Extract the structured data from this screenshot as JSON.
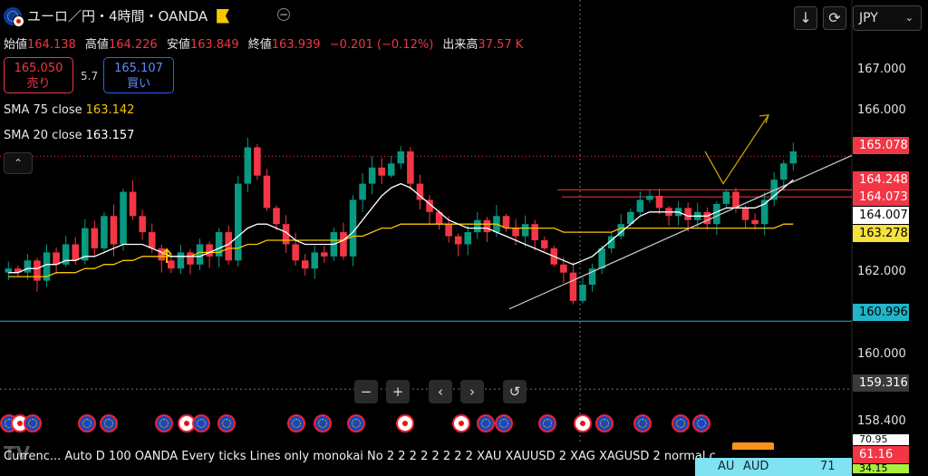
{
  "header": {
    "title": "ユーロ／円・4時間・OANDA",
    "currency_select": "JPY",
    "currency_chevron": "⌄"
  },
  "ohlc": {
    "open_label": "始値",
    "open": "164.138",
    "high_label": "高値",
    "high": "164.226",
    "low_label": "安値",
    "low": "163.849",
    "close_label": "終値",
    "close": "163.939",
    "change": "−0.201 (−0.12%)",
    "volume_label": "出来高",
    "volume": "37.57 K"
  },
  "trade": {
    "sell_price": "165.050",
    "sell_label": "売り",
    "spread": "5.7",
    "buy_price": "165.107",
    "buy_label": "買い"
  },
  "indicators": [
    {
      "label": "SMA 75 close",
      "value": "163.142",
      "color": "#f7c600"
    },
    {
      "label": "SMA 20 close",
      "value": "163.157",
      "color": "#ffffff"
    }
  ],
  "price_axis": {
    "ticks": [
      "167.000",
      "166.000",
      "162.000",
      "160.000",
      "158.400"
    ],
    "labels": [
      {
        "value": "165.078",
        "bg": "#f23645",
        "fg": "#ffffff"
      },
      {
        "value": "164.248",
        "bg": "#f23645",
        "fg": "#ffffff"
      },
      {
        "value": "164.073",
        "bg": "#f23645",
        "fg": "#ffffff"
      },
      {
        "value": "164.007",
        "bg": "#ffffff",
        "fg": "#000000"
      },
      {
        "value": "163.278",
        "bg": "#f7e13c",
        "fg": "#000000"
      },
      {
        "value": "160.996",
        "bg": "#22b4c8",
        "fg": "#000000"
      },
      {
        "value": "159.316",
        "bg": "#3a3a3a",
        "fg": "#ffffff"
      }
    ],
    "partial_labels": [
      {
        "value": "70.95",
        "bg": "#ffffff",
        "fg": "#000000"
      },
      {
        "value": "61.16",
        "bg": "#f23645",
        "fg": "#ffffff"
      },
      {
        "value": "34.15",
        "bg": "#a6f03c",
        "fg": "#000000"
      }
    ]
  },
  "nav_icons": [
    "minus-icon",
    "plus-icon",
    "chevron-left-icon",
    "chevron-right-icon",
    "reset-icon"
  ],
  "nav_glyphs": [
    "−",
    "+",
    "‹",
    "›",
    "↺"
  ],
  "top_icons": [
    "download-icon",
    "replay-icon"
  ],
  "top_glyphs": [
    "↓",
    "⟳"
  ],
  "collapse_glyph": "⌃",
  "watermark": "TV",
  "footer": {
    "status_text": "Currenc...   Auto D 100 OANDA Every ticks Lines only monokai No 2 2 2 2 2 2 2 2 XAU XAUUSD 2 XAG XAGUSD 2 normal c"
  },
  "watchlist": {
    "symbol": "AU",
    "name": "AUD",
    "value": "71"
  },
  "colors": {
    "up": "#089981",
    "down": "#f23645",
    "sma20": "#ffffff",
    "sma75": "#f7c600",
    "trend": "#cfcfcf",
    "projection": "#c4a000"
  },
  "chart_data": {
    "type": "candlestick",
    "symbol": "EUR/JPY",
    "timeframe": "4h",
    "ylim": [
      158.4,
      167.6
    ],
    "last_price": 165.078,
    "close_path": [
      162.3,
      162.2,
      162.5,
      162.0,
      162.7,
      162.4,
      162.9,
      162.5,
      163.3,
      162.8,
      163.6,
      162.9,
      164.2,
      163.6,
      163.2,
      162.8,
      162.5,
      162.3,
      162.7,
      162.4,
      162.9,
      162.6,
      163.2,
      162.5,
      164.4,
      165.3,
      164.6,
      163.8,
      163.4,
      162.9,
      162.5,
      162.3,
      162.7,
      162.6,
      163.2,
      162.6,
      164.0,
      164.4,
      164.8,
      164.6,
      164.9,
      165.2,
      164.4,
      164.0,
      163.7,
      163.4,
      163.1,
      162.9,
      163.2,
      163.5,
      163.2,
      163.6,
      163.3,
      163.1,
      163.4,
      163.0,
      162.8,
      162.4,
      162.2,
      161.5,
      161.9,
      162.3,
      162.8,
      163.1,
      163.4,
      163.7,
      164.0,
      164.1,
      163.8,
      163.6,
      163.8,
      163.5,
      163.7,
      163.4,
      163.9,
      164.2,
      163.8,
      163.5,
      163.4,
      164.0,
      164.5,
      164.9,
      165.2
    ],
    "sma20": [
      162.2,
      162.2,
      162.3,
      162.3,
      162.4,
      162.4,
      162.5,
      162.5,
      162.6,
      162.6,
      162.7,
      162.8,
      162.9,
      162.9,
      162.9,
      162.8,
      162.7,
      162.6,
      162.6,
      162.6,
      162.6,
      162.7,
      162.8,
      162.9,
      163.1,
      163.3,
      163.4,
      163.4,
      163.3,
      163.2,
      163.0,
      162.9,
      162.9,
      162.9,
      162.9,
      163.0,
      163.2,
      163.5,
      163.8,
      164.1,
      164.3,
      164.4,
      164.3,
      164.1,
      163.9,
      163.7,
      163.5,
      163.4,
      163.3,
      163.3,
      163.3,
      163.2,
      163.1,
      163.0,
      162.9,
      162.8,
      162.7,
      162.6,
      162.5,
      162.4,
      162.5,
      162.6,
      162.8,
      163.0,
      163.2,
      163.4,
      163.6,
      163.7,
      163.7,
      163.7,
      163.7,
      163.6,
      163.6,
      163.6,
      163.7,
      163.8,
      163.8,
      163.8,
      163.8,
      163.9,
      164.1,
      164.3,
      164.5
    ],
    "sma75": [
      162.1,
      162.1,
      162.1,
      162.1,
      162.1,
      162.2,
      162.2,
      162.2,
      162.3,
      162.3,
      162.4,
      162.4,
      162.5,
      162.5,
      162.6,
      162.6,
      162.6,
      162.6,
      162.6,
      162.6,
      162.7,
      162.7,
      162.7,
      162.8,
      162.8,
      162.9,
      162.9,
      163.0,
      163.0,
      163.0,
      163.0,
      163.0,
      163.0,
      163.0,
      163.0,
      163.0,
      163.1,
      163.1,
      163.2,
      163.3,
      163.3,
      163.4,
      163.4,
      163.4,
      163.4,
      163.4,
      163.4,
      163.4,
      163.4,
      163.4,
      163.4,
      163.4,
      163.3,
      163.3,
      163.3,
      163.3,
      163.3,
      163.3,
      163.2,
      163.2,
      163.2,
      163.2,
      163.2,
      163.2,
      163.3,
      163.3,
      163.3,
      163.3,
      163.3,
      163.3,
      163.3,
      163.3,
      163.3,
      163.3,
      163.3,
      163.3,
      163.3,
      163.3,
      163.3,
      163.3,
      163.3,
      163.4,
      163.4
    ],
    "horizontal_lines": [
      165.078,
      164.248,
      164.073,
      160.996
    ],
    "trendline": {
      "from": 161.3,
      "to": 165.1
    },
    "projection": [
      165.2,
      164.4,
      166.1
    ]
  }
}
